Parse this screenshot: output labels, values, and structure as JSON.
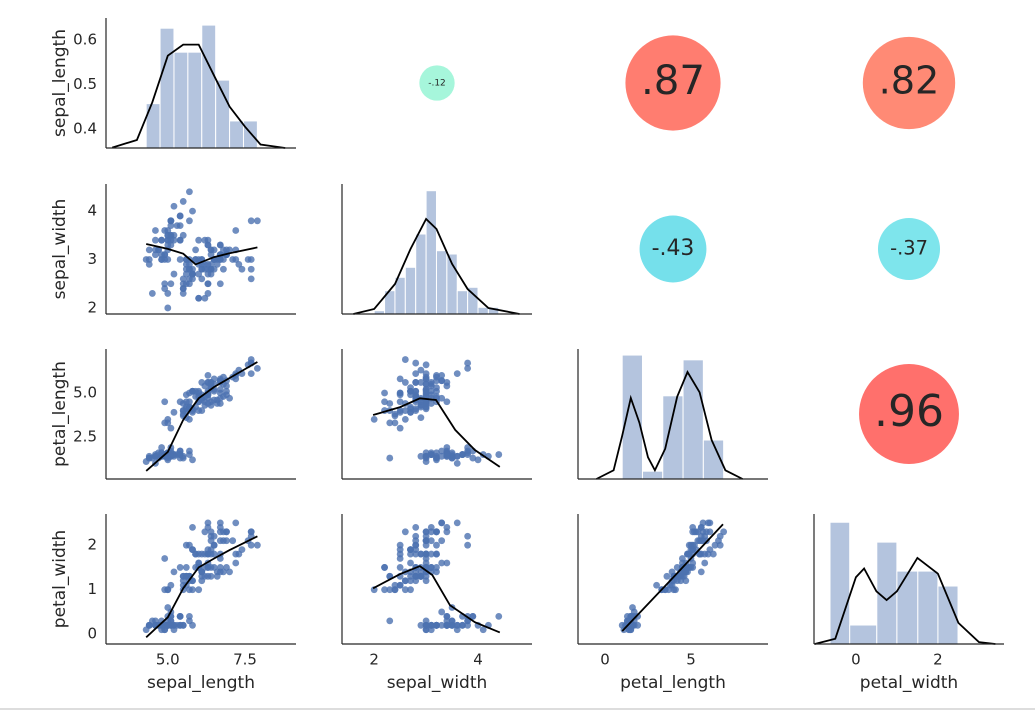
{
  "chart_data": {
    "type": "pairgrid",
    "columns": [
      {
        "name": "sepal_length",
        "xlim": [
          3.0,
          9.15
        ],
        "xticks": [
          {
            "value": 5,
            "label": "5.0"
          },
          7.5
        ],
        "ylim": [
          0.357,
          0.65
        ],
        "yticks": [
          0.4,
          0.5,
          0.6
        ],
        "values": [
          5.1,
          4.9,
          4.7,
          4.6,
          5.0,
          5.4,
          4.6,
          5.0,
          4.4,
          4.9,
          5.4,
          4.8,
          4.8,
          4.3,
          5.8,
          5.7,
          5.4,
          5.1,
          5.7,
          5.1,
          5.4,
          5.1,
          4.6,
          5.1,
          4.8,
          5.0,
          5.0,
          5.2,
          5.2,
          4.7,
          4.8,
          5.4,
          5.2,
          5.5,
          4.9,
          5.0,
          5.5,
          4.9,
          4.4,
          5.1,
          5.0,
          4.5,
          4.4,
          5.0,
          5.1,
          4.8,
          5.1,
          4.6,
          5.3,
          5.0,
          7.0,
          6.4,
          6.9,
          5.5,
          6.5,
          5.7,
          6.3,
          4.9,
          6.6,
          5.2,
          5.0,
          5.9,
          6.0,
          6.1,
          5.6,
          6.7,
          5.6,
          5.8,
          6.2,
          5.6,
          5.9,
          6.1,
          6.3,
          6.1,
          6.4,
          6.6,
          6.8,
          6.7,
          6.0,
          5.7,
          5.5,
          5.5,
          5.8,
          6.0,
          5.4,
          6.0,
          6.7,
          6.3,
          5.6,
          5.5,
          5.5,
          6.1,
          5.8,
          5.0,
          5.6,
          5.7,
          5.7,
          6.2,
          5.1,
          5.7,
          6.3,
          5.8,
          7.1,
          6.3,
          6.5,
          7.6,
          4.9,
          7.3,
          6.7,
          7.2,
          6.5,
          6.4,
          6.8,
          5.7,
          5.8,
          6.4,
          6.5,
          7.7,
          7.7,
          6.0,
          6.9,
          5.6,
          7.7,
          6.3,
          6.7,
          7.2,
          6.2,
          6.1,
          6.4,
          7.2,
          7.4,
          7.9,
          6.4,
          6.3,
          6.1,
          7.7,
          6.3,
          6.4,
          6.0,
          6.9,
          6.7,
          6.9,
          5.8,
          6.8,
          6.7,
          6.7,
          6.3,
          6.5,
          6.2,
          5.9
        ]
      },
      {
        "name": "sepal_width",
        "xlim": [
          1.38,
          5.04
        ],
        "xticks": [
          2,
          4
        ],
        "ylim": [
          1.875,
          4.56
        ],
        "yticks": [
          2,
          3,
          4
        ],
        "values": [
          3.5,
          3.0,
          3.2,
          3.1,
          3.6,
          3.9,
          3.4,
          3.4,
          2.9,
          3.1,
          3.7,
          3.4,
          3.0,
          3.0,
          4.0,
          4.4,
          3.9,
          3.5,
          3.8,
          3.8,
          3.4,
          3.7,
          3.6,
          3.3,
          3.4,
          3.0,
          3.4,
          3.5,
          3.4,
          3.2,
          3.1,
          3.4,
          4.1,
          4.2,
          3.1,
          3.2,
          3.5,
          3.6,
          3.0,
          3.4,
          3.5,
          2.3,
          3.2,
          3.5,
          3.8,
          3.0,
          3.8,
          3.2,
          3.7,
          3.3,
          3.2,
          3.2,
          3.1,
          2.3,
          2.8,
          2.8,
          3.3,
          2.4,
          2.9,
          2.7,
          2.0,
          3.0,
          2.2,
          2.9,
          2.9,
          3.1,
          3.0,
          2.7,
          2.2,
          2.5,
          3.2,
          2.8,
          2.5,
          2.8,
          2.9,
          3.0,
          2.8,
          3.0,
          2.9,
          2.6,
          2.4,
          2.4,
          2.7,
          2.7,
          3.0,
          3.4,
          3.1,
          2.3,
          3.0,
          2.5,
          2.6,
          3.0,
          2.6,
          2.3,
          2.7,
          3.0,
          2.9,
          2.9,
          2.5,
          2.8,
          3.3,
          2.7,
          3.0,
          2.9,
          3.0,
          3.0,
          2.5,
          2.9,
          2.5,
          3.6,
          3.2,
          2.7,
          3.0,
          2.5,
          2.8,
          3.2,
          3.0,
          3.8,
          2.6,
          2.2,
          3.2,
          2.8,
          2.8,
          2.7,
          3.3,
          3.2,
          2.8,
          3.0,
          2.8,
          3.0,
          2.8,
          3.8,
          2.8,
          2.8,
          2.6,
          3.0,
          3.4,
          3.1,
          3.0,
          3.1,
          3.1,
          3.1,
          2.7,
          3.2,
          3.3,
          3.0,
          2.5,
          3.0,
          3.4,
          3.0
        ]
      },
      {
        "name": "petal_length",
        "xlim": [
          -1.57,
          9.48
        ],
        "xticks": [
          0,
          5
        ],
        "ylim": [
          0.11,
          7.5
        ],
        "yticks": [
          2.5,
          {
            "value": 5,
            "label": "5.0"
          }
        ],
        "values": [
          1.4,
          1.4,
          1.3,
          1.5,
          1.4,
          1.7,
          1.4,
          1.5,
          1.4,
          1.5,
          1.5,
          1.6,
          1.4,
          1.1,
          1.2,
          1.5,
          1.3,
          1.4,
          1.7,
          1.5,
          1.7,
          1.5,
          1.0,
          1.7,
          1.9,
          1.6,
          1.6,
          1.5,
          1.4,
          1.6,
          1.6,
          1.5,
          1.5,
          1.4,
          1.5,
          1.2,
          1.3,
          1.4,
          1.3,
          1.5,
          1.3,
          1.3,
          1.3,
          1.6,
          1.9,
          1.4,
          1.6,
          1.4,
          1.5,
          1.4,
          4.7,
          4.5,
          4.9,
          4.0,
          4.6,
          4.5,
          4.7,
          3.3,
          4.6,
          3.9,
          3.5,
          4.2,
          4.0,
          4.7,
          3.6,
          4.4,
          4.5,
          4.1,
          4.5,
          3.9,
          4.8,
          4.0,
          4.9,
          4.7,
          4.3,
          4.4,
          4.8,
          5.0,
          4.5,
          3.5,
          3.8,
          3.7,
          3.9,
          5.1,
          4.5,
          4.5,
          4.7,
          4.4,
          4.1,
          4.0,
          4.4,
          4.6,
          4.0,
          3.3,
          4.2,
          4.2,
          4.2,
          4.3,
          3.0,
          4.1,
          6.0,
          5.1,
          5.9,
          5.6,
          5.8,
          6.6,
          4.5,
          6.3,
          5.8,
          6.1,
          5.1,
          5.3,
          5.5,
          5.0,
          5.1,
          5.3,
          5.5,
          6.7,
          6.9,
          5.0,
          5.7,
          4.9,
          6.7,
          4.9,
          5.7,
          6.0,
          4.8,
          4.9,
          5.6,
          5.8,
          6.1,
          6.4,
          5.6,
          5.1,
          5.6,
          6.1,
          5.6,
          5.5,
          4.8,
          5.4,
          5.6,
          5.1,
          5.1,
          5.9,
          5.7,
          5.2,
          5.0,
          5.2,
          5.4,
          5.1
        ]
      },
      {
        "name": "petal_width",
        "xlim": [
          -1.02,
          3.61
        ],
        "xticks": [
          0,
          2
        ],
        "ylim": [
          -0.22,
          2.7
        ],
        "yticks": [
          0,
          1,
          2
        ],
        "values": [
          0.2,
          0.2,
          0.2,
          0.2,
          0.2,
          0.4,
          0.3,
          0.2,
          0.2,
          0.1,
          0.2,
          0.2,
          0.1,
          0.1,
          0.2,
          0.4,
          0.4,
          0.3,
          0.3,
          0.3,
          0.2,
          0.4,
          0.2,
          0.5,
          0.2,
          0.2,
          0.4,
          0.2,
          0.2,
          0.2,
          0.2,
          0.4,
          0.1,
          0.2,
          0.2,
          0.2,
          0.2,
          0.1,
          0.2,
          0.2,
          0.3,
          0.3,
          0.2,
          0.6,
          0.4,
          0.3,
          0.2,
          0.2,
          0.2,
          0.2,
          1.4,
          1.5,
          1.5,
          1.3,
          1.5,
          1.3,
          1.6,
          1.0,
          1.3,
          1.4,
          1.0,
          1.5,
          1.0,
          1.4,
          1.3,
          1.4,
          1.5,
          1.0,
          1.5,
          1.1,
          1.8,
          1.3,
          1.5,
          1.2,
          1.3,
          1.4,
          1.4,
          1.7,
          1.5,
          1.0,
          1.1,
          1.0,
          1.2,
          1.6,
          1.5,
          1.6,
          1.5,
          1.3,
          1.3,
          1.3,
          1.2,
          1.4,
          1.2,
          1.0,
          1.3,
          1.2,
          1.3,
          1.3,
          1.1,
          1.3,
          2.5,
          1.9,
          2.1,
          1.8,
          2.2,
          2.1,
          1.7,
          1.8,
          1.8,
          2.5,
          2.0,
          1.9,
          2.1,
          2.0,
          2.4,
          2.3,
          1.8,
          2.2,
          2.3,
          1.5,
          2.3,
          2.0,
          2.0,
          1.8,
          2.1,
          1.8,
          1.8,
          1.8,
          2.1,
          1.6,
          1.9,
          2.0,
          2.2,
          1.5,
          1.4,
          2.3,
          2.4,
          1.8,
          1.8,
          2.1,
          2.4,
          2.3,
          1.9,
          2.3,
          2.5,
          2.3,
          1.9,
          2.0,
          2.3,
          1.8
        ]
      }
    ],
    "point_color": "#4c72b0",
    "hist_color": "#4c72b0",
    "line_color": "#000000",
    "diagonal": [
      {
        "ylim": [
          0.357,
          0.65
        ],
        "bins": [
          4.3,
          4.75,
          5.2,
          5.65,
          6.1,
          6.55,
          7.0,
          7.45,
          7.9
        ],
        "counts": [
          0.457,
          0.627,
          0.573,
          0.573,
          0.634,
          0.51,
          0.418,
          0.418
        ],
        "kde_x": [
          3.2,
          4.0,
          4.5,
          5.0,
          5.5,
          6.0,
          6.5,
          7.0,
          7.5,
          8.0,
          8.8
        ],
        "kde_y": [
          0.358,
          0.375,
          0.46,
          0.565,
          0.59,
          0.59,
          0.52,
          0.45,
          0.405,
          0.365,
          0.357
        ]
      },
      {
        "ylim": [
          0,
          1.3
        ],
        "bins": [
          2.0,
          2.2,
          2.4,
          2.6,
          2.8,
          3.0,
          3.2,
          3.4,
          3.6,
          3.8,
          4.0,
          4.2,
          4.4
        ],
        "counts": [
          0.033,
          0.233,
          0.367,
          0.467,
          0.8,
          1.233,
          0.633,
          0.6,
          0.233,
          0.267,
          0.067,
          0.067
        ],
        "kde_x": [
          1.6,
          2.0,
          2.4,
          2.7,
          3.0,
          3.2,
          3.5,
          3.8,
          4.2,
          4.8
        ],
        "kde_y": [
          0,
          0.05,
          0.3,
          0.65,
          0.95,
          0.85,
          0.5,
          0.25,
          0.06,
          0
        ]
      },
      {
        "ylim": [
          0,
          0.3
        ],
        "bins": [
          1.0,
          2.18,
          3.36,
          4.54,
          5.72,
          6.9
        ],
        "counts": [
          0.286,
          0.018,
          0.192,
          0.275,
          0.09
        ],
        "kde_x": [
          -0.5,
          0.5,
          1.0,
          1.5,
          2.0,
          2.5,
          2.9,
          3.5,
          4.2,
          4.8,
          5.5,
          6.2,
          7.0,
          8.0
        ],
        "kde_y": [
          0,
          0.02,
          0.1,
          0.187,
          0.13,
          0.05,
          0.02,
          0.07,
          0.19,
          0.247,
          0.2,
          0.09,
          0.02,
          0
        ]
      },
      {
        "ylim": [
          0,
          0.74
        ],
        "bins": [
          -0.63,
          -0.15,
          0.51,
          1.0,
          1.51,
          2.0,
          2.49
        ],
        "counts": [
          0.693,
          0.108,
          0.58,
          0.415,
          0.415,
          0.33
        ],
        "kde_x": [
          -1,
          -0.5,
          0,
          0.2,
          0.5,
          0.75,
          1.0,
          1.5,
          2.0,
          2.5,
          3.0,
          3.4
        ],
        "kde_y": [
          0,
          0.03,
          0.38,
          0.43,
          0.3,
          0.25,
          0.3,
          0.49,
          0.4,
          0.12,
          0.01,
          0
        ]
      }
    ],
    "fits": [
      {
        "x": [
          4.3,
          5.0,
          5.5,
          5.9,
          6.5,
          7.0,
          7.9
        ],
        "y": [
          3.32,
          3.22,
          3.12,
          2.9,
          3.05,
          3.13,
          3.25
        ]
      },
      {
        "x": [
          4.3,
          5.0,
          5.5,
          6.0,
          6.5,
          7.0,
          7.9
        ],
        "y": [
          0.57,
          1.65,
          3.47,
          4.7,
          5.34,
          5.85,
          6.76
        ]
      },
      {
        "x": [
          1.98,
          2.5,
          2.88,
          3.19,
          3.56,
          3.94,
          4.42
        ],
        "y": [
          3.75,
          4.2,
          4.7,
          4.6,
          2.9,
          1.76,
          0.8
        ]
      },
      {
        "x": [
          4.3,
          5.0,
          5.5,
          6.0,
          6.5,
          7.0,
          7.9
        ],
        "y": [
          -0.07,
          0.38,
          1.03,
          1.5,
          1.7,
          1.89,
          2.2
        ]
      },
      {
        "x": [
          1.98,
          2.5,
          2.88,
          3.12,
          3.46,
          3.94,
          4.42
        ],
        "y": [
          1.03,
          1.35,
          1.53,
          1.33,
          0.65,
          0.27,
          0.04
        ]
      },
      {
        "x": [
          1.0,
          3.9,
          6.86
        ],
        "y": [
          0.07,
          1.25,
          2.47
        ]
      }
    ],
    "correlations": [
      {
        "value": -0.12,
        "value_label": "-.12",
        "color": "#9cf5d7"
      },
      {
        "value": 0.87,
        "value_label": ".87",
        "color": "#ff6f61"
      },
      {
        "value": 0.82,
        "value_label": ".82",
        "color": "#ff7d66"
      },
      {
        "value": -0.43,
        "value_label": "-.43",
        "color": "#66dde9"
      },
      {
        "value": -0.37,
        "value_label": "-.37",
        "color": "#70e2ea"
      },
      {
        "value": 0.96,
        "value_label": ".96",
        "color": "#ff615c"
      }
    ]
  }
}
